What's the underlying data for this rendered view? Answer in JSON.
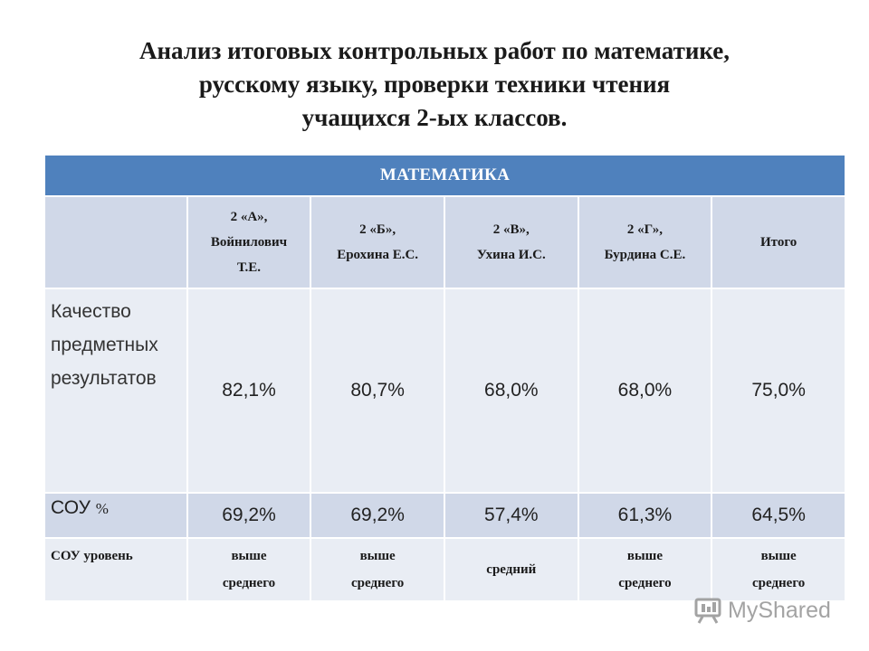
{
  "title": {
    "line1": "Анализ итоговых контрольных работ по математике,",
    "line2": "русскому языку, проверки техники чтения",
    "line3": "учащихся 2-ых классов."
  },
  "table": {
    "section_header": "МАТЕМАТИКА",
    "columns": [
      {
        "line1": "2 «А»,",
        "line2": "Войнилович",
        "line3": "Т.Е."
      },
      {
        "line1": "2 «Б»,",
        "line2": "Ерохина Е.С."
      },
      {
        "line1": "2 «В»,",
        "line2": "Ухина И.С."
      },
      {
        "line1": "2 «Г»,",
        "line2": "Бурдина С.Е."
      },
      {
        "line1": "Итого"
      }
    ],
    "rows": {
      "quality": {
        "label_line1": "Качество",
        "label_line2": "предметных",
        "label_line3": "результатов",
        "values": [
          "82,1%",
          "80,7%",
          "68,0%",
          "68,0%",
          "75,0%"
        ]
      },
      "sou_pct": {
        "label": "СОУ",
        "label_unit": "%",
        "values": [
          "69,2%",
          "69,2%",
          "57,4%",
          "61,3%",
          "64,5%"
        ]
      },
      "sou_level": {
        "label": "СОУ уровень",
        "values": [
          {
            "line1": "выше",
            "line2": "среднего"
          },
          {
            "line1": "выше",
            "line2": "среднего"
          },
          {
            "line1": "средний"
          },
          {
            "line1": "выше",
            "line2": "среднего"
          },
          {
            "line1": "выше",
            "line2": "среднего"
          }
        ]
      }
    }
  },
  "watermark": {
    "text": "MyShared",
    "icon": "presentation-board-icon"
  }
}
